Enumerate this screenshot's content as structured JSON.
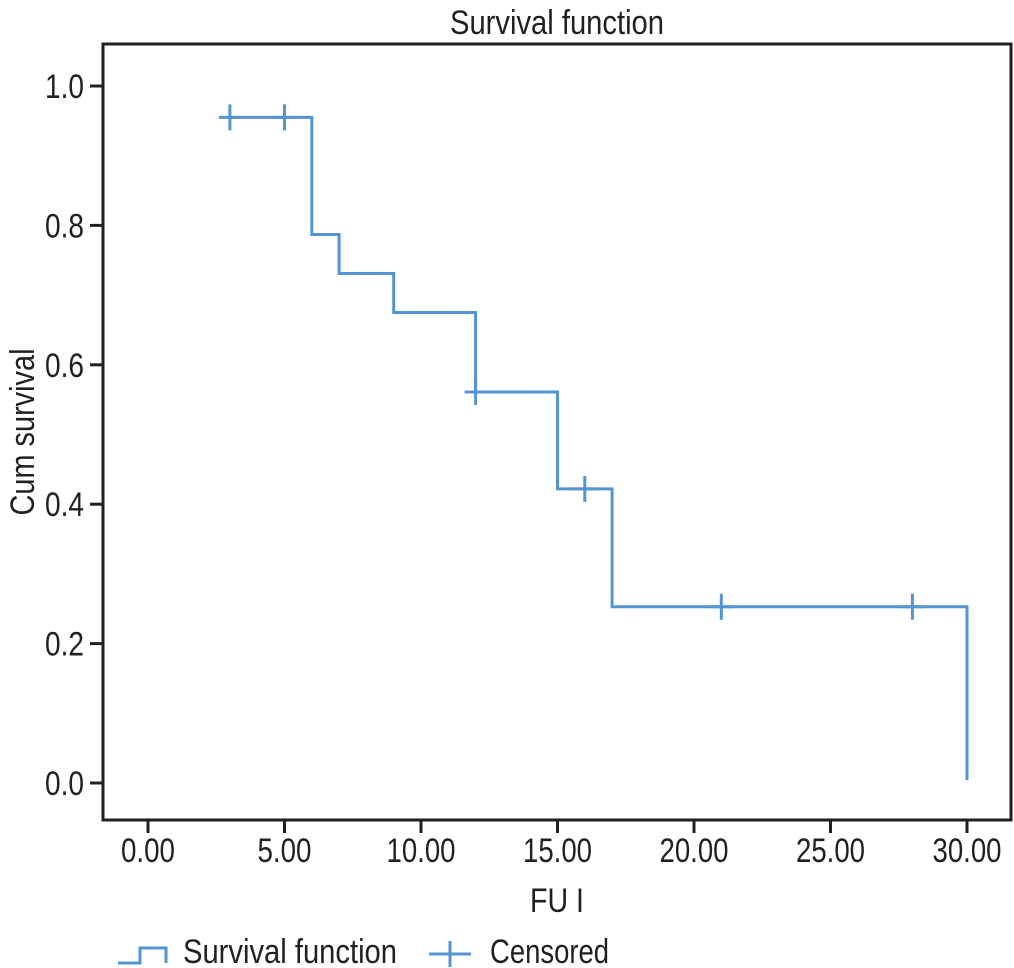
{
  "figure": {
    "background": "#ffffff"
  },
  "chart_data": {
    "type": "line",
    "subtype": "kaplan-meier-survival-step",
    "title": "Survival function",
    "xlabel": "FU I",
    "ylabel": "Cum survival",
    "xlim": [
      0,
      30
    ],
    "ylim": [
      0,
      1.0
    ],
    "grid": false,
    "legend_position": "bottom",
    "axis_color": "#231f20",
    "text_color": "#231f20",
    "x_ticks": {
      "values": [
        0,
        5,
        10,
        15,
        20,
        25,
        30
      ],
      "labels": [
        "0.00",
        "5.00",
        "10.00",
        "15.00",
        "20.00",
        "25.00",
        "30.00"
      ]
    },
    "y_ticks": {
      "values": [
        0.0,
        0.2,
        0.4,
        0.6,
        0.8,
        1.0
      ],
      "labels": [
        "0.0",
        "0.2",
        "0.4",
        "0.6",
        "0.8",
        "1.0"
      ]
    },
    "series": [
      {
        "name": "Survival function",
        "style": "step",
        "color": "#5494d3",
        "points": [
          [
            3,
            0.955
          ],
          [
            6,
            0.955
          ],
          [
            6,
            0.787
          ],
          [
            7,
            0.787
          ],
          [
            7,
            0.731
          ],
          [
            9,
            0.731
          ],
          [
            9,
            0.675
          ],
          [
            12,
            0.675
          ],
          [
            12,
            0.561
          ],
          [
            15,
            0.561
          ],
          [
            15,
            0.422
          ],
          [
            17,
            0.422
          ],
          [
            17,
            0.253
          ],
          [
            30,
            0.253
          ],
          [
            30,
            0.004
          ]
        ]
      },
      {
        "name": "Censored",
        "style": "plus-markers",
        "color": "#5494d3",
        "points": [
          [
            3,
            0.955
          ],
          [
            5,
            0.955
          ],
          [
            12,
            0.561
          ],
          [
            16,
            0.422
          ],
          [
            21,
            0.253
          ],
          [
            28,
            0.253
          ]
        ]
      }
    ]
  },
  "legend": {
    "items": [
      {
        "label": "Survival function",
        "marker": "step-line"
      },
      {
        "label": "Censored",
        "marker": "plus"
      }
    ]
  }
}
